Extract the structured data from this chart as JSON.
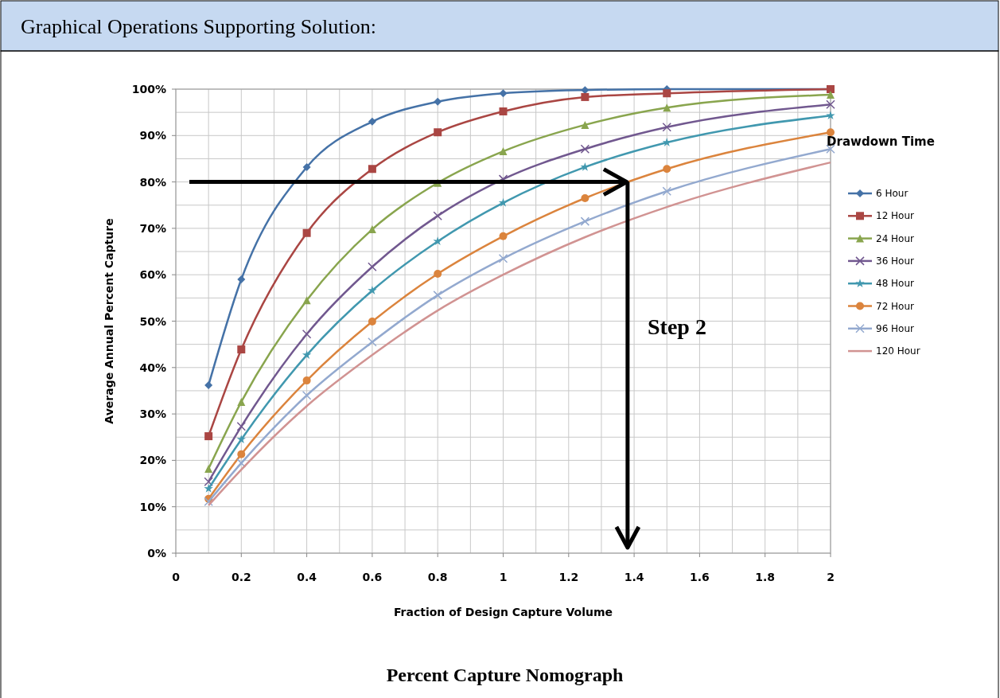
{
  "chart_data": {
    "type": "line",
    "title": "Graphical Operations Supporting Solution:",
    "xlabel": "Fraction of Design Capture Volume",
    "ylabel": "Average Annual Percent Capture",
    "legend_title": "Drawdown Time",
    "legend": "right",
    "grid": true,
    "x": [
      0.1,
      0.2,
      0.4,
      0.6,
      0.8,
      1,
      1.25,
      1.5,
      2
    ],
    "xlim": [
      0,
      2
    ],
    "xticks": [
      0,
      0.2,
      0.4,
      0.6,
      0.8,
      1,
      1.2,
      1.4,
      1.6,
      1.8,
      2
    ],
    "ylim": [
      0,
      100
    ],
    "yticks": [
      {
        "value": 0,
        "label": "0%"
      },
      {
        "value": 10,
        "label": "10%"
      },
      {
        "value": 20,
        "label": "20%"
      },
      {
        "value": 30,
        "label": "30%"
      },
      {
        "value": 40,
        "label": "40%"
      },
      {
        "value": 50,
        "label": "50%"
      },
      {
        "value": 60,
        "label": "60%"
      },
      {
        "value": 70,
        "label": "70%"
      },
      {
        "value": 80,
        "label": "80%"
      },
      {
        "value": 90,
        "label": "90%"
      },
      {
        "value": 100,
        "label": "100%"
      }
    ],
    "series": [
      {
        "name": "6 Hour",
        "color": "#4572a7",
        "marker": "diamond",
        "values": [
          36.2,
          59,
          83.2,
          93,
          97.3,
          99.1,
          99.8,
          100,
          100
        ]
      },
      {
        "name": "12 Hour",
        "color": "#aa4643",
        "marker": "square",
        "values": [
          25.2,
          43.9,
          69,
          82.8,
          90.7,
          95.2,
          98.3,
          99.1,
          100
        ]
      },
      {
        "name": "24 Hour",
        "color": "#89a54e",
        "marker": "triangle",
        "values": [
          18.2,
          32.6,
          54.5,
          69.8,
          79.8,
          86.6,
          92.3,
          96,
          98.8
        ]
      },
      {
        "name": "36 Hour",
        "color": "#71588f",
        "marker": "cross",
        "values": [
          15.4,
          27.3,
          47.2,
          61.7,
          72.7,
          80.6,
          87.1,
          91.8,
          96.7
        ]
      },
      {
        "name": "48 Hour",
        "color": "#4198af",
        "marker": "star",
        "values": [
          13.9,
          24.5,
          42.7,
          56.6,
          67.2,
          75.5,
          83.2,
          88.5,
          94.3
        ]
      },
      {
        "name": "72 Hour",
        "color": "#db843d",
        "marker": "circle",
        "values": [
          11.7,
          21.3,
          37.2,
          49.9,
          60.2,
          68.3,
          76.5,
          82.8,
          90.7
        ]
      },
      {
        "name": "96 Hour",
        "color": "#93a9cf",
        "marker": "cross",
        "values": [
          11.1,
          19.4,
          34,
          45.5,
          55.6,
          63.5,
          71.5,
          78,
          87.1
        ]
      },
      {
        "name": "120 Hour",
        "color": "#d19392",
        "marker": "none",
        "values": [
          10.3,
          18,
          31.7,
          42.7,
          52.3,
          60,
          68.1,
          74.6,
          84.2
        ]
      }
    ],
    "ref_lines": [
      {
        "axis": "y",
        "value": 80,
        "color": "#000000"
      },
      {
        "axis": "x",
        "value": 1.38,
        "color": "#000000"
      }
    ],
    "annotations": [
      "Step 2",
      "Percent Capture Nomograph"
    ]
  }
}
